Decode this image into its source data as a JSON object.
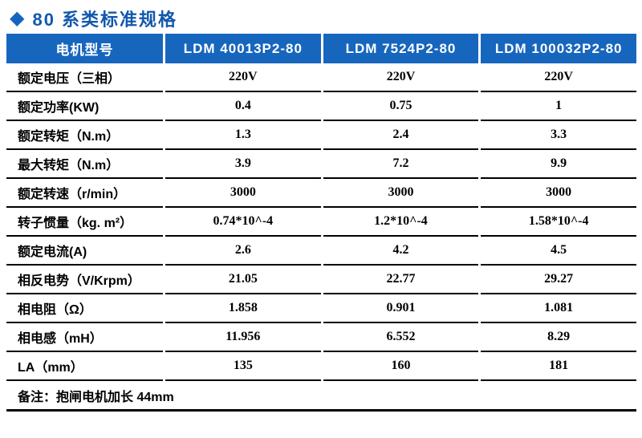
{
  "title": {
    "icon_glyph": "◆",
    "text": "80 系类标准规格"
  },
  "colors": {
    "header_blue": "#1766be",
    "title_blue": "#1258ad",
    "line_black": "#000000"
  },
  "table": {
    "header": [
      "电机型号",
      "LDM 40013P2-80",
      "LDM 7524P2-80",
      "LDM 100032P2-80"
    ],
    "rows": [
      {
        "label": "额定电压（三相）",
        "values": [
          "220V",
          "220V",
          "220V"
        ]
      },
      {
        "label": "额定功率(KW)",
        "values": [
          "0.4",
          "0.75",
          "1"
        ]
      },
      {
        "label": "额定转矩（N.m）",
        "values": [
          "1.3",
          "2.4",
          "3.3"
        ]
      },
      {
        "label": "最大转矩（N.m）",
        "values": [
          "3.9",
          "7.2",
          "9.9"
        ]
      },
      {
        "label": "额定转速（r/min）",
        "values": [
          "3000",
          "3000",
          "3000"
        ]
      },
      {
        "label": "转子惯量（kg. m²）",
        "values": [
          "0.74*10^-4",
          "1.2*10^-4",
          "1.58*10^-4"
        ]
      },
      {
        "label": "额定电流(A)",
        "values": [
          "2.6",
          "4.2",
          "4.5"
        ]
      },
      {
        "label": "相反电势（V/Krpm）",
        "values": [
          "21.05",
          "22.77",
          "29.27"
        ]
      },
      {
        "label": "相电阻（Ω）",
        "values": [
          "1.858",
          "0.901",
          "1.081"
        ]
      },
      {
        "label": "相电感（mH）",
        "values": [
          "11.956",
          "6.552",
          "8.29"
        ]
      },
      {
        "label": "LA（mm）",
        "values": [
          "135",
          "160",
          "181"
        ]
      }
    ],
    "note": "备注：抱闸电机加长 44mm"
  }
}
